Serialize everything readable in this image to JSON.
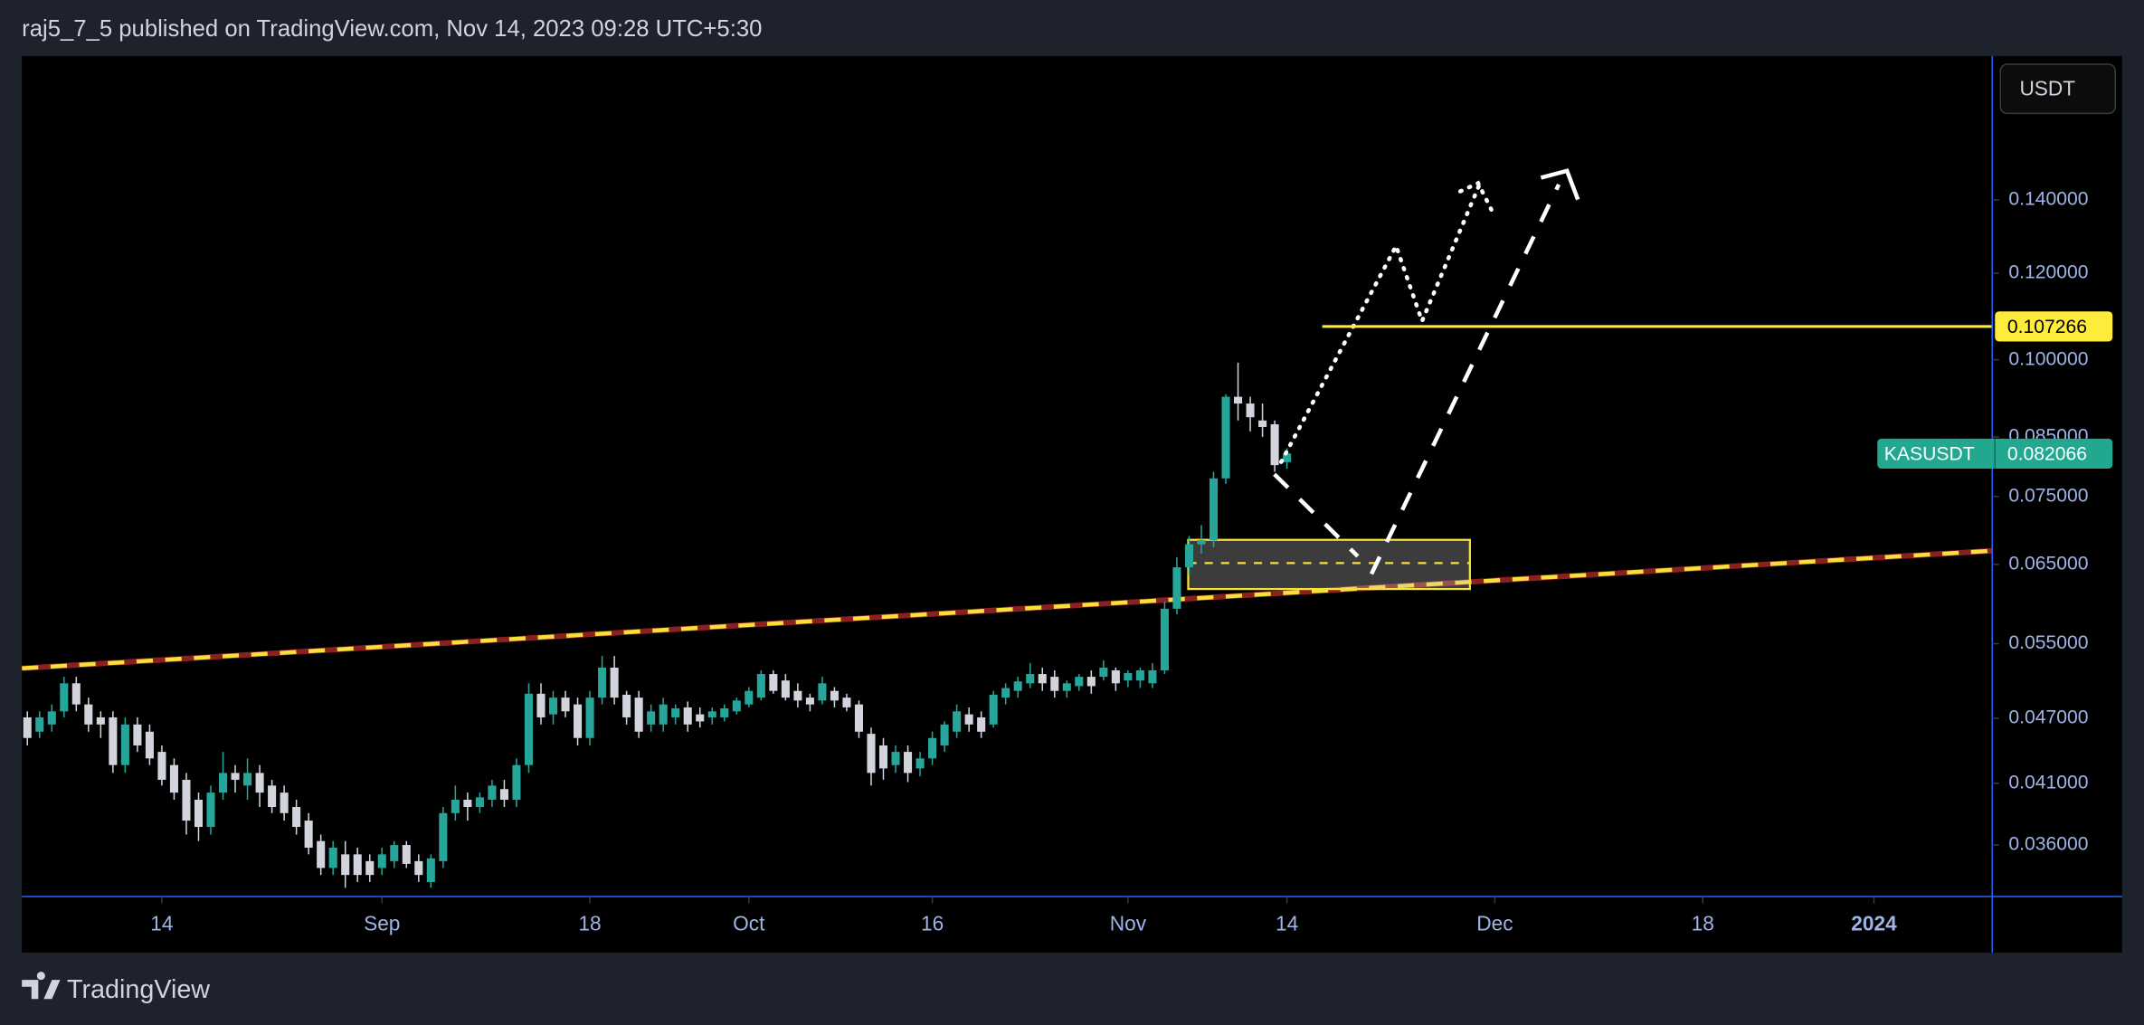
{
  "header": "raj5_7_5 published on TradingView.com, Nov 14, 2023 09:28 UTC+5:30",
  "footer_brand": "TradingView",
  "currency_button": "USDT",
  "chart_data": {
    "type": "candlestick",
    "log_scale": true,
    "up_color": "#26a69a",
    "down_color": "#d1d4dc",
    "x": [
      "Aug 3",
      "Aug 4",
      "Aug 5",
      "Aug 6",
      "Aug 7",
      "Aug 8",
      "Aug 9",
      "Aug 10",
      "Aug 11",
      "Aug 12",
      "Aug 13",
      "Aug 14",
      "Aug 15",
      "Aug 16",
      "Aug 17",
      "Aug 18",
      "Aug 19",
      "Aug 20",
      "Aug 21",
      "Aug 22",
      "Aug 23",
      "Aug 24",
      "Aug 25",
      "Aug 26",
      "Aug 27",
      "Aug 28",
      "Aug 29",
      "Aug 30",
      "Aug 31",
      "Sep 1",
      "Sep 2",
      "Sep 3",
      "Sep 4",
      "Sep 5",
      "Sep 6",
      "Sep 7",
      "Sep 8",
      "Sep 9",
      "Sep 10",
      "Sep 11",
      "Sep 12",
      "Sep 13",
      "Sep 14",
      "Sep 15",
      "Sep 16",
      "Sep 17",
      "Sep 18",
      "Sep 19",
      "Sep 20",
      "Sep 21",
      "Sep 22",
      "Sep 23",
      "Sep 24",
      "Sep 25",
      "Sep 26",
      "Sep 27",
      "Sep 28",
      "Sep 29",
      "Sep 30",
      "Oct 1",
      "Oct 2",
      "Oct 3",
      "Oct 4",
      "Oct 5",
      "Oct 6",
      "Oct 7",
      "Oct 8",
      "Oct 9",
      "Oct 10",
      "Oct 11",
      "Oct 12",
      "Oct 13",
      "Oct 14",
      "Oct 15",
      "Oct 16",
      "Oct 17",
      "Oct 18",
      "Oct 19",
      "Oct 20",
      "Oct 21",
      "Oct 22",
      "Oct 23",
      "Oct 24",
      "Oct 25",
      "Oct 26",
      "Oct 27",
      "Oct 28",
      "Oct 29",
      "Oct 30",
      "Oct 31",
      "Nov 1",
      "Nov 2",
      "Nov 3",
      "Nov 4",
      "Nov 5",
      "Nov 6",
      "Nov 7",
      "Nov 8",
      "Nov 9",
      "Nov 10",
      "Nov 11",
      "Nov 12",
      "Nov 13",
      "Nov 14"
    ],
    "open": [
      0.0471,
      0.0457,
      0.0464,
      0.0477,
      0.0506,
      0.0484,
      0.0471,
      0.0471,
      0.0426,
      0.0464,
      0.0457,
      0.0438,
      0.0426,
      0.0413,
      0.0396,
      0.0374,
      0.0402,
      0.0419,
      0.0408,
      0.0419,
      0.0408,
      0.0402,
      0.039,
      0.0379,
      0.0363,
      0.0343,
      0.0353,
      0.0353,
      0.0348,
      0.0343,
      0.0348,
      0.036,
      0.0348,
      0.0333,
      0.0348,
      0.0385,
      0.0396,
      0.039,
      0.0396,
      0.0405,
      0.0396,
      0.0426,
      0.0495,
      0.0474,
      0.0491,
      0.0484,
      0.0451,
      0.0491,
      0.0523,
      0.0494,
      0.0491,
      0.0464,
      0.0464,
      0.0471,
      0.0481,
      0.0474,
      0.0471,
      0.0471,
      0.0477,
      0.0484,
      0.0491,
      0.0516,
      0.0509,
      0.0498,
      0.0491,
      0.0488,
      0.0498,
      0.0491,
      0.0484,
      0.0455,
      0.0444,
      0.0426,
      0.0438,
      0.0423,
      0.0432,
      0.0444,
      0.0457,
      0.0474,
      0.0471,
      0.0464,
      0.0491,
      0.0498,
      0.0506,
      0.0516,
      0.0513,
      0.0498,
      0.0503,
      0.0513,
      0.0513,
      0.052,
      0.0509,
      0.0509,
      0.0506,
      0.052,
      0.0592,
      0.0646,
      0.0678,
      0.0684,
      0.0779,
      0.0925,
      0.0912,
      0.088,
      0.0873,
      0.0806
    ],
    "high": [
      0.0477,
      0.0477,
      0.0484,
      0.0513,
      0.0513,
      0.0491,
      0.0477,
      0.0477,
      0.0471,
      0.0471,
      0.0464,
      0.0444,
      0.0432,
      0.0419,
      0.0402,
      0.0408,
      0.0438,
      0.0426,
      0.0432,
      0.0426,
      0.0413,
      0.0408,
      0.0396,
      0.0385,
      0.0368,
      0.0363,
      0.0363,
      0.0358,
      0.0353,
      0.0358,
      0.0363,
      0.0363,
      0.0353,
      0.0353,
      0.039,
      0.0408,
      0.0402,
      0.0402,
      0.0413,
      0.0413,
      0.0432,
      0.0506,
      0.0506,
      0.0498,
      0.0498,
      0.0491,
      0.0498,
      0.0536,
      0.0536,
      0.0498,
      0.0498,
      0.0484,
      0.0491,
      0.0484,
      0.0487,
      0.0481,
      0.0481,
      0.0484,
      0.0491,
      0.0502,
      0.052,
      0.052,
      0.0516,
      0.0506,
      0.0495,
      0.0513,
      0.0502,
      0.0495,
      0.0488,
      0.0461,
      0.0451,
      0.0444,
      0.0444,
      0.0438,
      0.0457,
      0.0467,
      0.0484,
      0.0481,
      0.0477,
      0.0498,
      0.0506,
      0.0513,
      0.0528,
      0.0523,
      0.052,
      0.0509,
      0.0516,
      0.052,
      0.0531,
      0.0523,
      0.052,
      0.0523,
      0.0528,
      0.0601,
      0.066,
      0.069,
      0.0706,
      0.079,
      0.093,
      0.0994,
      0.0925,
      0.0912,
      0.088,
      0.083
    ],
    "low": [
      0.0444,
      0.0451,
      0.0457,
      0.0471,
      0.0477,
      0.0457,
      0.0451,
      0.0419,
      0.0419,
      0.0438,
      0.0426,
      0.0408,
      0.0396,
      0.0368,
      0.0363,
      0.0368,
      0.0396,
      0.0402,
      0.0396,
      0.039,
      0.0385,
      0.0379,
      0.0368,
      0.0353,
      0.0338,
      0.0338,
      0.0329,
      0.0333,
      0.0333,
      0.0338,
      0.0343,
      0.0343,
      0.0333,
      0.0329,
      0.0343,
      0.0379,
      0.0379,
      0.0385,
      0.039,
      0.039,
      0.039,
      0.0419,
      0.0464,
      0.0464,
      0.0471,
      0.0444,
      0.0444,
      0.0484,
      0.0484,
      0.0464,
      0.0451,
      0.0457,
      0.0457,
      0.0464,
      0.0457,
      0.0461,
      0.0464,
      0.0467,
      0.0474,
      0.0481,
      0.0488,
      0.0495,
      0.0488,
      0.0481,
      0.0477,
      0.0484,
      0.0481,
      0.0477,
      0.0451,
      0.0408,
      0.0413,
      0.0419,
      0.0411,
      0.0416,
      0.0426,
      0.0438,
      0.0451,
      0.0457,
      0.0451,
      0.0461,
      0.0484,
      0.0491,
      0.0501,
      0.0498,
      0.0491,
      0.0491,
      0.0498,
      0.0495,
      0.0509,
      0.0498,
      0.0502,
      0.0501,
      0.0501,
      0.0516,
      0.0585,
      0.0636,
      0.0665,
      0.0674,
      0.077,
      0.088,
      0.086,
      0.085,
      0.079,
      0.0795
    ],
    "close": [
      0.0451,
      0.0471,
      0.0477,
      0.0506,
      0.0484,
      0.0464,
      0.0464,
      0.0426,
      0.0464,
      0.0444,
      0.0432,
      0.0413,
      0.0402,
      0.0379,
      0.0374,
      0.0402,
      0.0419,
      0.0413,
      0.0419,
      0.0402,
      0.039,
      0.0385,
      0.0374,
      0.0358,
      0.0343,
      0.0358,
      0.0338,
      0.0338,
      0.0338,
      0.0353,
      0.036,
      0.0346,
      0.0338,
      0.035,
      0.0385,
      0.0396,
      0.039,
      0.0398,
      0.0408,
      0.0396,
      0.0426,
      0.0495,
      0.0471,
      0.0491,
      0.0477,
      0.0451,
      0.0491,
      0.0523,
      0.0491,
      0.0471,
      0.0457,
      0.0477,
      0.0484,
      0.048,
      0.0464,
      0.0467,
      0.0477,
      0.048,
      0.0488,
      0.0498,
      0.0516,
      0.0498,
      0.0491,
      0.0488,
      0.0484,
      0.0506,
      0.0488,
      0.0481,
      0.0457,
      0.0419,
      0.0423,
      0.0438,
      0.0419,
      0.0432,
      0.0451,
      0.0464,
      0.0477,
      0.0464,
      0.0457,
      0.0494,
      0.0501,
      0.0508,
      0.0516,
      0.0506,
      0.0498,
      0.0506,
      0.0513,
      0.0503,
      0.0523,
      0.0506,
      0.0517,
      0.052,
      0.052,
      0.0592,
      0.0646,
      0.0678,
      0.0684,
      0.0779,
      0.0925,
      0.0912,
      0.0886,
      0.0868,
      0.0801,
      0.0821
    ],
    "xlim": [
      "Aug 3",
      "Jan 10"
    ],
    "xticks": [
      {
        "value": "Aug 14",
        "label": "14"
      },
      {
        "value": "Sep 1",
        "label": "Sep"
      },
      {
        "value": "Sep 18",
        "label": "18"
      },
      {
        "value": "Oct 1",
        "label": "Oct"
      },
      {
        "value": "Oct 16",
        "label": "16"
      },
      {
        "value": "Nov 1",
        "label": "Nov"
      },
      {
        "value": "Nov 14",
        "label": "14"
      },
      {
        "value": "Dec 1",
        "label": "Dec"
      },
      {
        "value": "Dec 18",
        "label": "18"
      },
      {
        "value": "Jan 1",
        "label": "2024"
      }
    ],
    "ylim": [
      0.0323,
      0.189
    ],
    "yticks": [
      {
        "value": 0.036,
        "label": "0.036000"
      },
      {
        "value": 0.041,
        "label": "0.041000"
      },
      {
        "value": 0.047,
        "label": "0.047000"
      },
      {
        "value": 0.055,
        "label": "0.055000"
      },
      {
        "value": 0.065,
        "label": "0.065000"
      },
      {
        "value": 0.075,
        "label": "0.075000"
      },
      {
        "value": 0.085,
        "label": "0.085000"
      },
      {
        "value": 0.1,
        "label": "0.100000"
      },
      {
        "value": 0.12,
        "label": "0.120000"
      },
      {
        "value": 0.14,
        "label": "0.140000"
      }
    ],
    "horizontal_line": {
      "value": 0.107266,
      "color": "#ffeb3b"
    },
    "last_price": {
      "symbol": "KASUSDT",
      "value": 0.082066,
      "color": "#22a88f"
    }
  }
}
